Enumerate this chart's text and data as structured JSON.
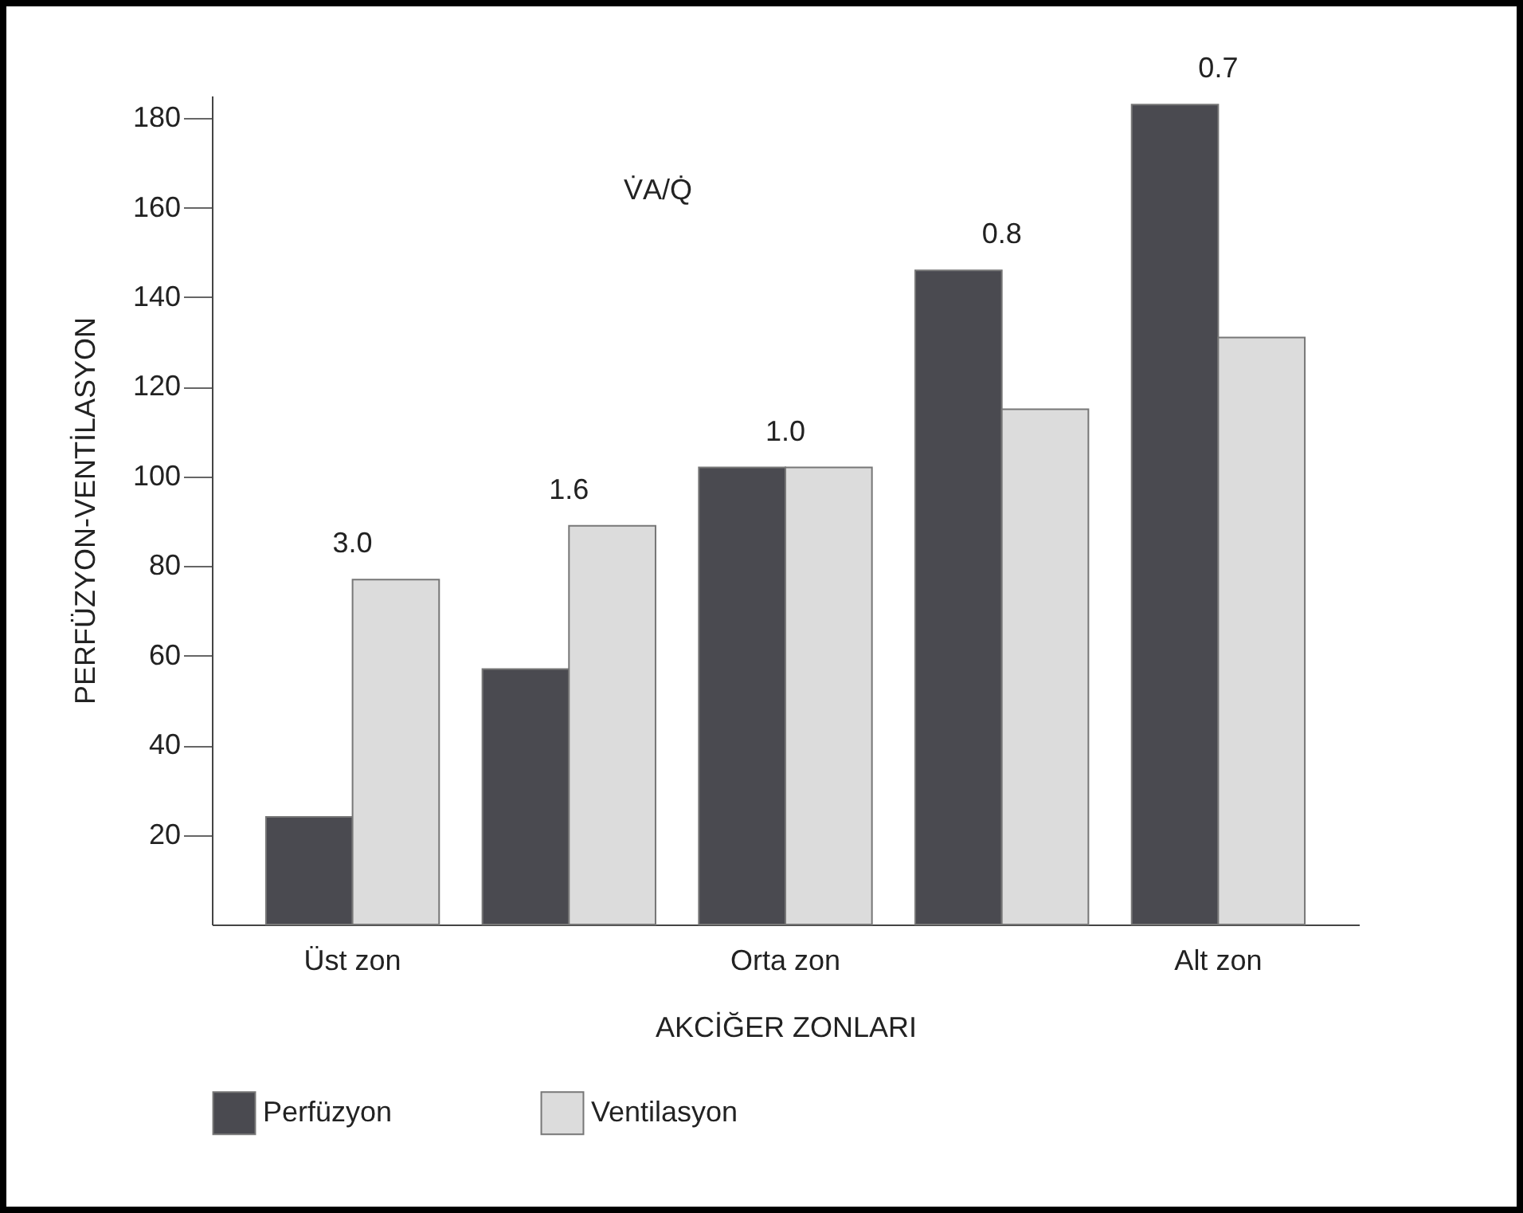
{
  "chart_data": {
    "type": "bar",
    "xlabel": "AKCİĞER ZONLARI",
    "ylabel": "PERFÜZYON-VENTİLASYON",
    "categories": [
      "Üst zon",
      null,
      "Orta zon",
      null,
      "Alt zon"
    ],
    "series": [
      {
        "name": "Perfüzyon",
        "color": "#4a4a50",
        "values": [
          24,
          57,
          102,
          146,
          183
        ]
      },
      {
        "name": "Ventilasyon",
        "color": "#dcdcdc",
        "values": [
          77,
          89,
          102,
          115,
          131
        ]
      }
    ],
    "ylim": [
      0,
      185
    ],
    "yticks": [
      20,
      40,
      60,
      80,
      100,
      120,
      140,
      160,
      180
    ],
    "grid": false,
    "legend": "bottom",
    "annotations": [
      "V̇A/Q̇",
      {
        "text": "3.0",
        "x": "Üst zon",
        "y": 77
      },
      {
        "text": "1.6",
        "y": 89
      },
      {
        "text": "1.0",
        "x": "Orta zon",
        "y": 102
      },
      {
        "text": "0.8",
        "y": 146
      },
      {
        "text": "0.7",
        "x": "Alt zon",
        "y": 183
      }
    ]
  }
}
